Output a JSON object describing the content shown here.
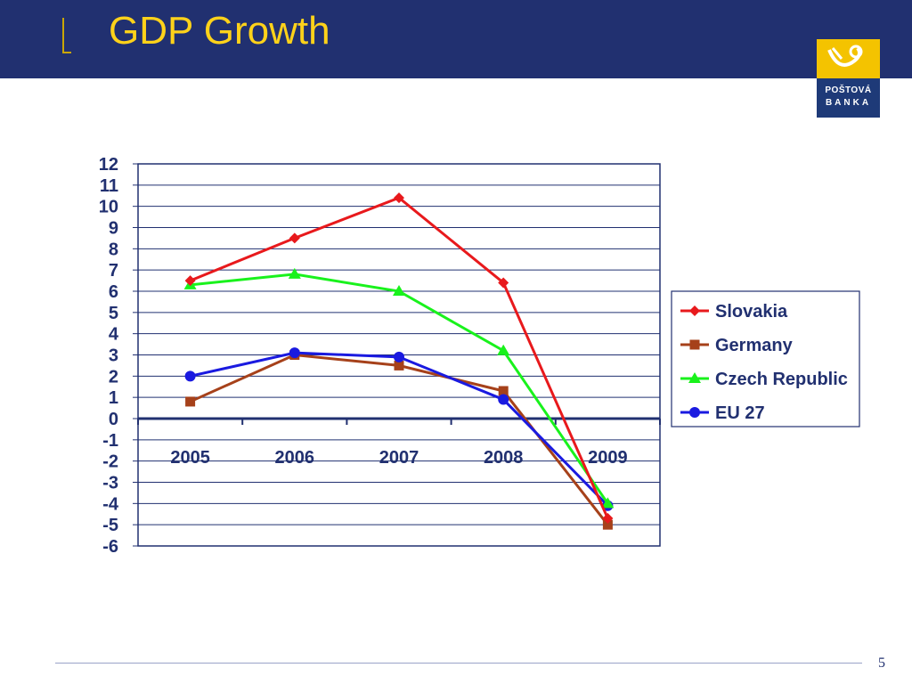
{
  "header": {
    "title": "GDP Growth"
  },
  "logo": {
    "line1": "POŠTOVÁ",
    "line2": "BANKA"
  },
  "footer": {
    "page_number": "5"
  },
  "colors": {
    "header_bg": "#213070",
    "title": "#ffd21a",
    "text": "#213070"
  },
  "chart_data": {
    "type": "line",
    "title": "",
    "xlabel": "",
    "ylabel": "",
    "categories": [
      "2005",
      "2006",
      "2007",
      "2008",
      "2009"
    ],
    "ylim": [
      -6,
      12
    ],
    "yticks": [
      "12",
      "11",
      "10",
      "9",
      "8",
      "7",
      "6",
      "5",
      "4",
      "3",
      "2",
      "1",
      "0",
      "-1",
      "-2",
      "-3",
      "-4",
      "-5",
      "-6"
    ],
    "grid": true,
    "legend_position": "right",
    "series": [
      {
        "name": "Slovakia",
        "values": [
          6.5,
          8.5,
          10.4,
          6.4,
          -4.7
        ],
        "color": "#e8191c",
        "marker": "diamond"
      },
      {
        "name": "Germany",
        "values": [
          0.8,
          3.0,
          2.5,
          1.3,
          -5.0
        ],
        "color": "#a6411a",
        "marker": "square"
      },
      {
        "name": "Czech Republic",
        "values": [
          6.3,
          6.8,
          6.0,
          3.2,
          -4.0
        ],
        "color": "#19f21c",
        "marker": "triangle"
      },
      {
        "name": "EU 27",
        "values": [
          2.0,
          3.1,
          2.9,
          0.9,
          -4.1
        ],
        "color": "#1a1ae0",
        "marker": "circle"
      }
    ]
  }
}
